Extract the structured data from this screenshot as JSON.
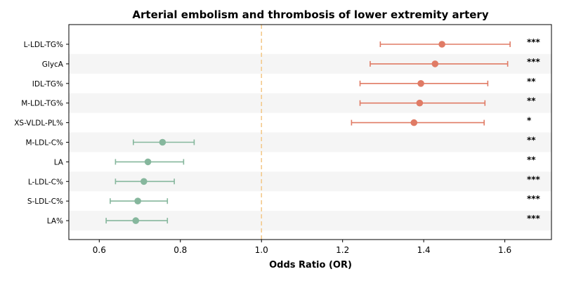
{
  "chart_data": {
    "type": "forest",
    "title": "Arterial embolism and thrombosis of lower extremity artery",
    "xlabel": "Odds Ratio (OR)",
    "xlim": [
      0.525,
      1.715
    ],
    "xticks": [
      0.6,
      0.8,
      1.0,
      1.2,
      1.4,
      1.6
    ],
    "xtick_labels": [
      "0.6",
      "0.8",
      "1.0",
      "1.2",
      "1.4",
      "1.6"
    ],
    "reference_line": 1.0,
    "colors": {
      "risk": "#e07b65",
      "protective": "#86b79d",
      "reference": "#f3c98b",
      "stripe": "#f5f5f5"
    },
    "points": [
      {
        "label": "L-LDL-TG%",
        "or": 1.445,
        "lower": 1.293,
        "upper": 1.613,
        "sig": "***",
        "group": "risk"
      },
      {
        "label": "GlycA",
        "or": 1.428,
        "lower": 1.268,
        "upper": 1.607,
        "sig": "***",
        "group": "risk"
      },
      {
        "label": "IDL-TG%",
        "or": 1.393,
        "lower": 1.243,
        "upper": 1.558,
        "sig": "**",
        "group": "risk"
      },
      {
        "label": "M-LDL-TG%",
        "or": 1.39,
        "lower": 1.243,
        "upper": 1.551,
        "sig": "**",
        "group": "risk"
      },
      {
        "label": "XS-VLDL-PL%",
        "or": 1.376,
        "lower": 1.222,
        "upper": 1.549,
        "sig": "*",
        "group": "risk"
      },
      {
        "label": "M-LDL-C%",
        "or": 0.756,
        "lower": 0.684,
        "upper": 0.834,
        "sig": "**",
        "group": "protective"
      },
      {
        "label": "LA",
        "or": 0.72,
        "lower": 0.64,
        "upper": 0.808,
        "sig": "**",
        "group": "protective"
      },
      {
        "label": "L-LDL-C%",
        "or": 0.71,
        "lower": 0.64,
        "upper": 0.785,
        "sig": "***",
        "group": "protective"
      },
      {
        "label": "S-LDL-C%",
        "or": 0.695,
        "lower": 0.627,
        "upper": 0.768,
        "sig": "***",
        "group": "protective"
      },
      {
        "label": "LA%",
        "or": 0.69,
        "lower": 0.617,
        "upper": 0.768,
        "sig": "***",
        "group": "protective"
      }
    ]
  }
}
